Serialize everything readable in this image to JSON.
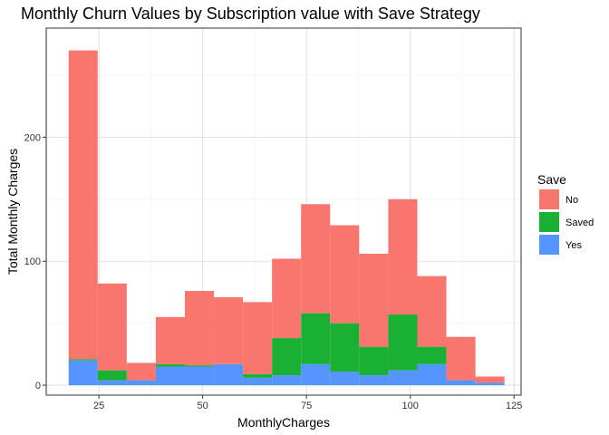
{
  "chart_data": {
    "type": "bar",
    "stacked": true,
    "title": "Monthly Churn Values by Subscription value with Save Strategy",
    "xlabel": "MonthlyCharges",
    "ylabel": "Total Monthly Charges",
    "xlim": [
      12.3,
      126.7
    ],
    "ylim": [
      -8,
      288
    ],
    "xticks": [
      25,
      50,
      75,
      100,
      125
    ],
    "yticks": [
      0,
      100,
      200
    ],
    "grid": true,
    "bin_width": 7,
    "bin_edges": [
      17.7,
      24.7,
      31.7,
      38.7,
      45.7,
      52.7,
      59.7,
      66.7,
      73.7,
      80.7,
      87.7,
      94.7,
      101.7,
      108.7,
      115.7,
      122.7
    ],
    "legend": {
      "title": "Save",
      "position": "right",
      "entries": [
        "No",
        "Saved",
        "Yes"
      ]
    },
    "colors": {
      "No": "#F8766D",
      "Saved": "#1AB033",
      "Yes": "#5595FF"
    },
    "series": [
      {
        "name": "Yes",
        "values": [
          20,
          4,
          4,
          15,
          15,
          17,
          6,
          8,
          17,
          11,
          8,
          12,
          17,
          4,
          2
        ]
      },
      {
        "name": "Saved",
        "values": [
          1,
          8,
          0,
          2,
          1,
          0,
          3,
          30,
          41,
          39,
          23,
          45,
          14,
          0,
          0
        ]
      },
      {
        "name": "No",
        "values": [
          249,
          70,
          14,
          38,
          60,
          54,
          58,
          64,
          88,
          79,
          75,
          93,
          57,
          35,
          5
        ]
      }
    ]
  }
}
